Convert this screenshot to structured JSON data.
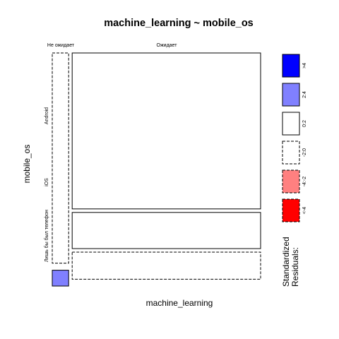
{
  "chart_data": {
    "type": "mosaic",
    "title": "machine_learning ~ mobile_os",
    "xlabel": "machine_learning",
    "ylabel": "mobile_os",
    "x_categories": [
      "Не ожидает",
      "Ожидает"
    ],
    "y_categories": [
      "Android",
      "iOS",
      "Лишь бы был телефон"
    ],
    "x_proportions": [
      0.08,
      0.92
    ],
    "cells": [
      {
        "x": "Не ожидает",
        "y": "Android",
        "proportion": 0.93,
        "residual_class": "-2:0"
      },
      {
        "x": "Не ожидает",
        "y": "iOS",
        "proportion": 0.0,
        "residual_class": "-2:0"
      },
      {
        "x": "Не ожидает",
        "y": "Лишь бы был телефон",
        "proportion": 0.07,
        "residual_class": "2:4"
      },
      {
        "x": "Ожидает",
        "y": "Android",
        "proportion": 0.69,
        "residual_class": "0:2"
      },
      {
        "x": "Ожидает",
        "y": "iOS",
        "proportion": 0.16,
        "residual_class": "0:2"
      },
      {
        "x": "Ожидает",
        "y": "Лишь бы был телефон",
        "proportion": 0.12,
        "residual_class": "-2:0"
      }
    ],
    "legend": {
      "title_lines": [
        "Standardized",
        "Residuals:"
      ],
      "placement": "right",
      "items": [
        {
          "label": ">4",
          "fill": "#0000FF",
          "dashed": false
        },
        {
          "label": "2:4",
          "fill": "#8080FF",
          "dashed": false
        },
        {
          "label": "0:2",
          "fill": "#FFFFFF",
          "dashed": false
        },
        {
          "label": "-2:0",
          "fill": "#FFFFFF",
          "dashed": true
        },
        {
          "label": "-4:-2",
          "fill": "#FF8080",
          "dashed": true
        },
        {
          "label": "<-4",
          "fill": "#FF0000",
          "dashed": true
        }
      ]
    }
  }
}
